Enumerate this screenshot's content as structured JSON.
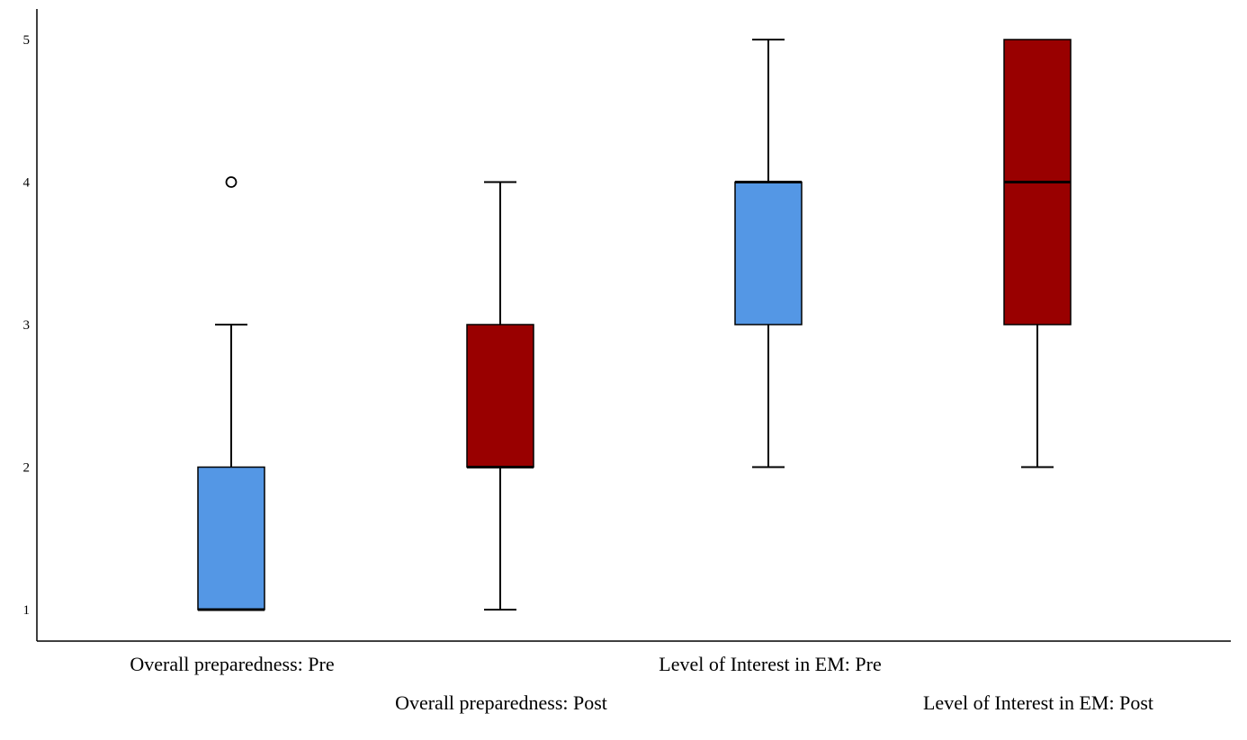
{
  "chart_data": {
    "type": "boxplot",
    "title": "",
    "xlabel": "",
    "ylabel": "",
    "ylim": [
      1,
      5
    ],
    "y_ticks": [
      "1",
      "2",
      "3",
      "4",
      "5"
    ],
    "grid": false,
    "legend": "none",
    "categories": [
      "Overall preparedness: Pre",
      "Overall preparedness: Post",
      "Level of Interest in EM: Pre",
      "Level of Interest in EM: Post"
    ],
    "boxes": [
      {
        "category": "Overall preparedness: Pre",
        "whisker_low": 1,
        "q1": 1,
        "median": 1,
        "q3": 2,
        "whisker_high": 3,
        "outliers": [
          4
        ],
        "color": "#5497e5"
      },
      {
        "category": "Overall preparedness: Post",
        "whisker_low": 1,
        "q1": 2,
        "median": 2,
        "q3": 3,
        "whisker_high": 4,
        "outliers": [],
        "color": "#990000"
      },
      {
        "category": "Level of Interest in EM: Pre",
        "whisker_low": 2,
        "q1": 3,
        "median": 4,
        "q3": 4,
        "whisker_high": 5,
        "outliers": [],
        "color": "#5497e5"
      },
      {
        "category": "Level of Interest in EM: Post",
        "whisker_low": 2,
        "q1": 3,
        "median": 4,
        "q3": 5,
        "whisker_high": 5,
        "outliers": [],
        "color": "#990000"
      }
    ]
  }
}
